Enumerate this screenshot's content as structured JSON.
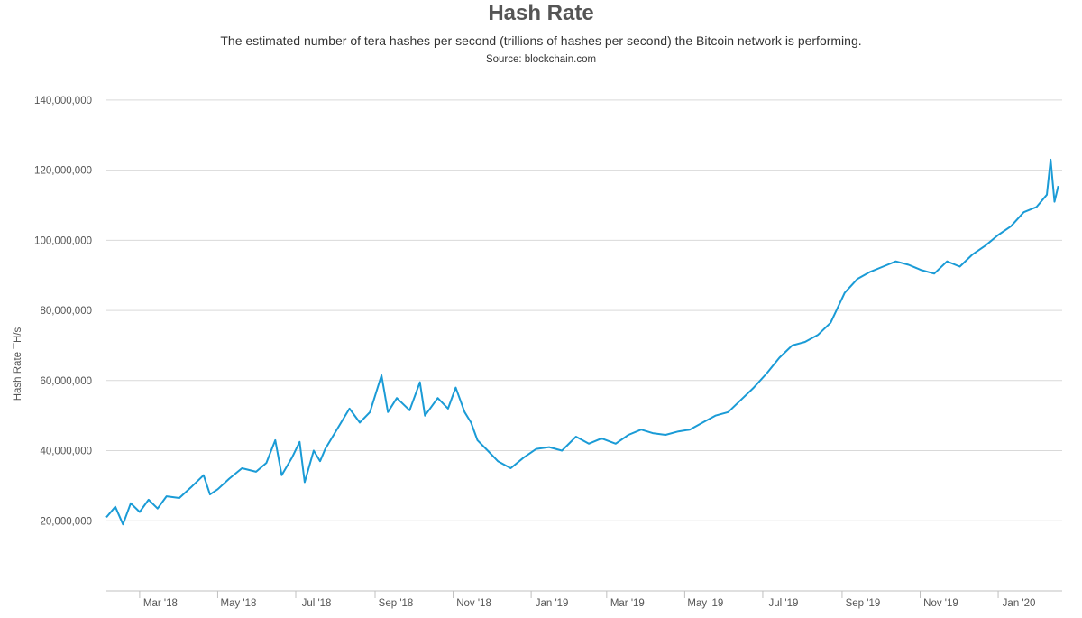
{
  "header": {
    "title": "Hash Rate",
    "subtitle": "The estimated number of tera hashes per second (trillions of hashes per second) the Bitcoin network is performing.",
    "source": "Source: blockchain.com"
  },
  "colors": {
    "line": "#1a9bd6",
    "grid": "#d9d9d9",
    "axis": "#c0c0c0"
  },
  "chart_data": {
    "type": "line",
    "title": "Hash Rate",
    "xlabel": "",
    "ylabel": "Hash Rate TH/s",
    "ylim": [
      0,
      150000000
    ],
    "grid": true,
    "legend": "none",
    "y_ticks": [
      20000000,
      40000000,
      60000000,
      80000000,
      100000000,
      120000000,
      140000000
    ],
    "y_tick_labels": [
      "20,000,000",
      "40,000,000",
      "60,000,000",
      "80,000,000",
      "100,000,000",
      "120,000,000",
      "140,000,000"
    ],
    "x_range": [
      "2018-02-03",
      "2020-02-20"
    ],
    "x_ticks": [
      "2018-03-01",
      "2018-05-01",
      "2018-07-01",
      "2018-09-01",
      "2018-11-01",
      "2019-01-01",
      "2019-03-01",
      "2019-05-01",
      "2019-07-01",
      "2019-09-01",
      "2019-11-01",
      "2020-01-01"
    ],
    "x_tick_labels": [
      "Mar '18",
      "May '18",
      "Jul '18",
      "Sep '18",
      "Nov '18",
      "Jan '19",
      "Mar '19",
      "May '19",
      "Jul '19",
      "Sep '19",
      "Nov '19",
      "Jan '20"
    ],
    "series": [
      {
        "values": [
          [
            "2018-02-03",
            21000000
          ],
          [
            "2018-02-10",
            24000000
          ],
          [
            "2018-02-16",
            19000000
          ],
          [
            "2018-02-22",
            25000000
          ],
          [
            "2018-03-01",
            22500000
          ],
          [
            "2018-03-08",
            26000000
          ],
          [
            "2018-03-15",
            23500000
          ],
          [
            "2018-03-22",
            27000000
          ],
          [
            "2018-04-01",
            26500000
          ],
          [
            "2018-04-10",
            29500000
          ],
          [
            "2018-04-20",
            33000000
          ],
          [
            "2018-04-25",
            27500000
          ],
          [
            "2018-05-01",
            29000000
          ],
          [
            "2018-05-10",
            32000000
          ],
          [
            "2018-05-20",
            35000000
          ],
          [
            "2018-05-31",
            34000000
          ],
          [
            "2018-06-08",
            36500000
          ],
          [
            "2018-06-15",
            43000000
          ],
          [
            "2018-06-20",
            33000000
          ],
          [
            "2018-06-28",
            38000000
          ],
          [
            "2018-07-04",
            42500000
          ],
          [
            "2018-07-08",
            31000000
          ],
          [
            "2018-07-15",
            40000000
          ],
          [
            "2018-07-20",
            37000000
          ],
          [
            "2018-07-24",
            40500000
          ],
          [
            "2018-08-12",
            52000000
          ],
          [
            "2018-08-20",
            48000000
          ],
          [
            "2018-08-28",
            51000000
          ],
          [
            "2018-09-06",
            61500000
          ],
          [
            "2018-09-11",
            51000000
          ],
          [
            "2018-09-18",
            55000000
          ],
          [
            "2018-09-28",
            51500000
          ],
          [
            "2018-10-06",
            59500000
          ],
          [
            "2018-10-10",
            50000000
          ],
          [
            "2018-10-20",
            55000000
          ],
          [
            "2018-10-28",
            52000000
          ],
          [
            "2018-11-03",
            58000000
          ],
          [
            "2018-11-10",
            51000000
          ],
          [
            "2018-11-15",
            48000000
          ],
          [
            "2018-11-20",
            43000000
          ],
          [
            "2018-11-28",
            40000000
          ],
          [
            "2018-12-06",
            37000000
          ],
          [
            "2018-12-16",
            35000000
          ],
          [
            "2018-12-26",
            38000000
          ],
          [
            "2019-01-05",
            40500000
          ],
          [
            "2019-01-15",
            41000000
          ],
          [
            "2019-01-25",
            40000000
          ],
          [
            "2019-02-05",
            44000000
          ],
          [
            "2019-02-15",
            42000000
          ],
          [
            "2019-02-25",
            43500000
          ],
          [
            "2019-03-08",
            42000000
          ],
          [
            "2019-03-18",
            44500000
          ],
          [
            "2019-03-28",
            46000000
          ],
          [
            "2019-04-06",
            45000000
          ],
          [
            "2019-04-16",
            44500000
          ],
          [
            "2019-04-26",
            45500000
          ],
          [
            "2019-05-05",
            46000000
          ],
          [
            "2019-05-15",
            48000000
          ],
          [
            "2019-05-25",
            50000000
          ],
          [
            "2019-06-04",
            51000000
          ],
          [
            "2019-06-14",
            54500000
          ],
          [
            "2019-06-24",
            58000000
          ],
          [
            "2019-07-04",
            62000000
          ],
          [
            "2019-07-14",
            66500000
          ],
          [
            "2019-07-24",
            70000000
          ],
          [
            "2019-08-03",
            71000000
          ],
          [
            "2019-08-13",
            73000000
          ],
          [
            "2019-08-23",
            76500000
          ],
          [
            "2019-09-03",
            85000000
          ],
          [
            "2019-09-13",
            89000000
          ],
          [
            "2019-09-23",
            91000000
          ],
          [
            "2019-10-03",
            92500000
          ],
          [
            "2019-10-13",
            94000000
          ],
          [
            "2019-10-23",
            93000000
          ],
          [
            "2019-11-02",
            91500000
          ],
          [
            "2019-11-12",
            90500000
          ],
          [
            "2019-11-22",
            94000000
          ],
          [
            "2019-12-02",
            92500000
          ],
          [
            "2019-12-12",
            96000000
          ],
          [
            "2019-12-22",
            98500000
          ],
          [
            "2020-01-01",
            101500000
          ],
          [
            "2020-01-11",
            104000000
          ],
          [
            "2020-01-21",
            108000000
          ],
          [
            "2020-01-31",
            109500000
          ],
          [
            "2020-02-08",
            113000000
          ],
          [
            "2020-02-11",
            123000000
          ],
          [
            "2020-02-14",
            111000000
          ],
          [
            "2020-02-17",
            115500000
          ]
        ]
      }
    ]
  }
}
